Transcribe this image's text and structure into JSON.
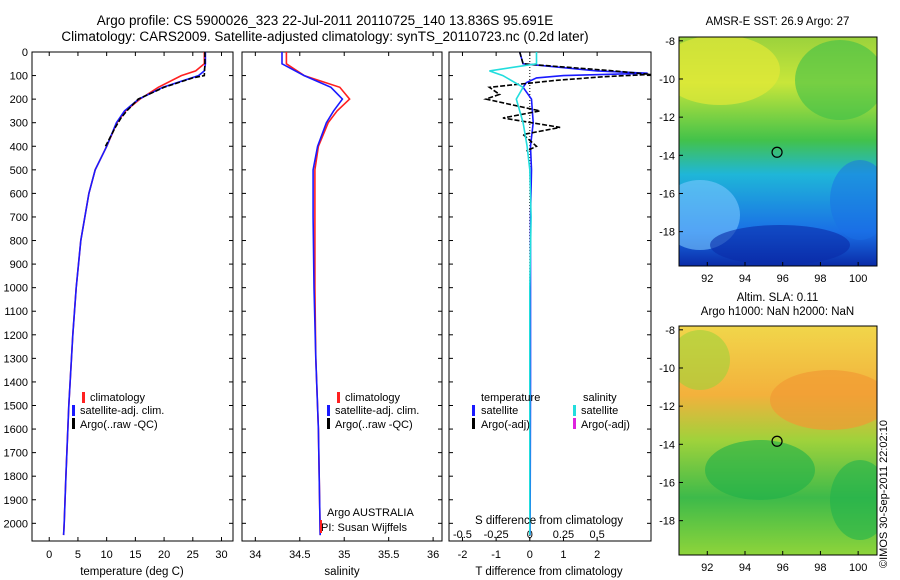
{
  "header": {
    "line1": "Argo profile: CS 5900026_323 22-Jul-2011 20110725_140 13.836S 95.691E",
    "line2": "Climatology: CARS2009. Satellite-adjusted climatology: synTS_20110723.nc (0.2d later)"
  },
  "stamp": "©IMOS 30-Sep-2011 22:02:10",
  "colors": {
    "climatology": "#ff2020",
    "satellite": "#1a1aff",
    "argo": "#000000",
    "sat_salinity": "#22dddd",
    "argo_salinity": "#dd22dd"
  },
  "chart_data": [
    {
      "type": "line",
      "panel": "temperature",
      "xlabel": "temperature (deg C)",
      "xticks": [
        0,
        5,
        10,
        15,
        20,
        25,
        30
      ],
      "xlim": [
        -3,
        32
      ],
      "ylim": [
        0,
        2075
      ],
      "yticks": [
        0,
        100,
        200,
        300,
        400,
        500,
        600,
        700,
        800,
        900,
        1000,
        1100,
        1200,
        1300,
        1400,
        1500,
        1600,
        1700,
        1800,
        1900,
        2000
      ],
      "legend": [
        "climatology",
        "satellite-adj. clim.",
        "Argo(..raw -QC)"
      ],
      "series": [
        {
          "name": "climatology",
          "color": "#ff2020",
          "depth": [
            0,
            50,
            80,
            100,
            150,
            200,
            250,
            300,
            400,
            500,
            600,
            800,
            1000,
            1200,
            1500,
            1800,
            2000,
            2050
          ],
          "values": [
            27,
            27,
            25.5,
            23,
            19,
            15.8,
            13.3,
            11.8,
            10,
            8,
            6.9,
            5.5,
            4.7,
            4.1,
            3.4,
            2.9,
            2.6,
            2.5
          ]
        },
        {
          "name": "satellite-adj. clim.",
          "color": "#1a1aff",
          "depth": [
            0,
            50,
            80,
            100,
            150,
            200,
            250,
            300,
            400,
            500,
            600,
            800,
            1000,
            1200,
            1500,
            1800,
            2000,
            2050
          ],
          "values": [
            27.2,
            27.2,
            27,
            26,
            19.8,
            15.6,
            13.1,
            11.7,
            10,
            8,
            6.9,
            5.5,
            4.7,
            4.1,
            3.4,
            2.9,
            2.6,
            2.5
          ]
        },
        {
          "name": "Argo(..raw -QC)",
          "color": "#000000",
          "depth": [
            0,
            50,
            100,
            110,
            150,
            200,
            250,
            280,
            320,
            400
          ],
          "values": [
            27.1,
            27.1,
            27,
            25,
            20,
            15.5,
            13.5,
            12.5,
            11.5,
            9.8
          ]
        }
      ]
    },
    {
      "type": "line",
      "panel": "salinity",
      "xlabel": "salinity",
      "xticks": [
        34,
        34.5,
        35,
        35.5,
        36
      ],
      "xlim": [
        33.85,
        36.1
      ],
      "ylim": [
        0,
        2075
      ],
      "legend": [
        "climatology",
        "satellite-adj. clim.",
        "Argo(..raw -QC)"
      ],
      "annotations": [
        "Argo AUSTRALIA",
        "PI: Susan Wijffels"
      ],
      "series": [
        {
          "name": "climatology",
          "color": "#ff2020",
          "depth": [
            0,
            50,
            100,
            150,
            200,
            250,
            300,
            400,
            500,
            700,
            1000,
            1300,
            1600,
            2050
          ],
          "values": [
            34.35,
            34.35,
            34.55,
            34.95,
            35.06,
            34.92,
            34.82,
            34.71,
            34.67,
            34.67,
            34.67,
            34.68,
            34.71,
            34.73
          ]
        },
        {
          "name": "satellite-adj. clim.",
          "color": "#1a1aff",
          "depth": [
            0,
            50,
            100,
            150,
            200,
            250,
            300,
            400,
            500,
            700,
            1000,
            1300,
            1600,
            2050
          ],
          "values": [
            34.3,
            34.3,
            34.55,
            34.85,
            34.98,
            34.88,
            34.8,
            34.7,
            34.65,
            34.65,
            34.66,
            34.68,
            34.71,
            34.73
          ]
        }
      ]
    },
    {
      "type": "line",
      "panel": "difference",
      "xlabel": "T difference from climatology",
      "xlabel_top": "S difference from climatology",
      "xticks": [
        -2,
        -1,
        0,
        1,
        2
      ],
      "xticks_top": [
        "-0.5",
        "-0.25",
        "0",
        "0.25",
        "0.5"
      ],
      "xlim": [
        -2.4,
        3.6
      ],
      "ylim": [
        0,
        2075
      ],
      "legend_headers": [
        "temperature",
        "salinity"
      ],
      "legend": [
        "satellite",
        "Argo(-adj)",
        "satellite",
        "Argo(-adj)"
      ],
      "series": [
        {
          "name": "temperature satellite",
          "color": "#1a1aff",
          "depth": [
            0,
            50,
            80,
            90,
            100,
            110,
            130,
            150,
            200,
            300,
            400,
            500,
            700,
            1000,
            1400,
            2050
          ],
          "values": [
            -0.3,
            -0.2,
            2,
            3.5,
            1,
            0.2,
            -0.1,
            -0.2,
            0.05,
            0.1,
            0.02,
            0.05,
            0.02,
            0.02,
            0.02,
            0.01
          ]
        },
        {
          "name": "temperature Argo(-adj)",
          "color": "#000000",
          "depth": [
            0,
            50,
            80,
            95,
            105,
            120,
            150,
            180,
            200,
            250,
            280,
            320,
            350,
            400,
            420
          ],
          "values": [
            -0.3,
            -0.2,
            2.5,
            3.6,
            2.2,
            0.8,
            -1.2,
            -0.9,
            -1.3,
            0.3,
            -0.8,
            0.9,
            -0.2,
            0.2,
            -0.1
          ]
        },
        {
          "name": "salinity satellite",
          "color": "#22dddd",
          "depth": [
            0,
            50,
            80,
            100,
            150,
            200,
            300,
            400,
            500,
            700,
            1000,
            1400,
            2050
          ],
          "values": [
            0.05,
            0.05,
            -0.3,
            -0.2,
            -0.05,
            -0.1,
            -0.05,
            -0.02,
            0,
            0.01,
            0,
            0,
            0
          ]
        }
      ]
    }
  ],
  "maps": [
    {
      "title": "AMSR-E SST: 26.9 Argo: 27",
      "xticks": [
        "92",
        "94",
        "96",
        "98",
        "100"
      ],
      "yticks": [
        "-8",
        "-10",
        "-12",
        "-14",
        "-16",
        "-18"
      ],
      "xlim": [
        90.5,
        101
      ],
      "ylim": [
        -19.8,
        -7.8
      ],
      "marker": {
        "lon": 95.7,
        "lat": -13.84
      }
    },
    {
      "title": "Altim. SLA: 0.11",
      "subtitle": "Argo h1000: NaN h2000: NaN",
      "xticks": [
        "92",
        "94",
        "96",
        "98",
        "100"
      ],
      "yticks": [
        "-8",
        "-10",
        "-12",
        "-14",
        "-16",
        "-18"
      ],
      "xlim": [
        90.5,
        101
      ],
      "ylim": [
        -19.8,
        -7.8
      ],
      "marker": {
        "lon": 95.7,
        "lat": -13.84
      }
    }
  ]
}
